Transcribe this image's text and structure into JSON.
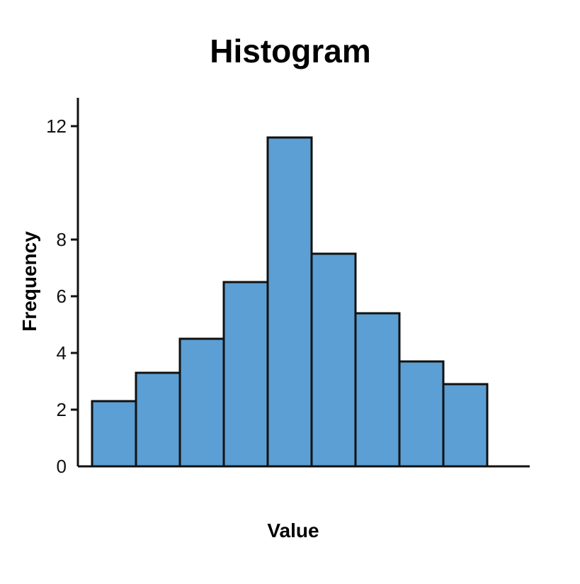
{
  "chart_data": {
    "type": "bar",
    "title": "Histogram",
    "xlabel": "Value",
    "ylabel": "Frequency",
    "ylim": [
      0,
      13
    ],
    "y_ticks": [
      {
        "value": 0,
        "label": "0"
      },
      {
        "value": 2,
        "label": "2"
      },
      {
        "value": 4,
        "label": "4"
      },
      {
        "value": 6,
        "label": "6"
      },
      {
        "value": 8,
        "label": "8"
      },
      {
        "value": 12,
        "label": "12"
      }
    ],
    "values": [
      2.3,
      3.3,
      4.5,
      6.5,
      11.6,
      7.5,
      5.4,
      3.7,
      2.9
    ],
    "grid": false,
    "legend": "none",
    "colors": {
      "bar_fill": "#5B9FD4",
      "bar_stroke": "#111111",
      "axis": "#111111",
      "text": "#111111"
    }
  }
}
